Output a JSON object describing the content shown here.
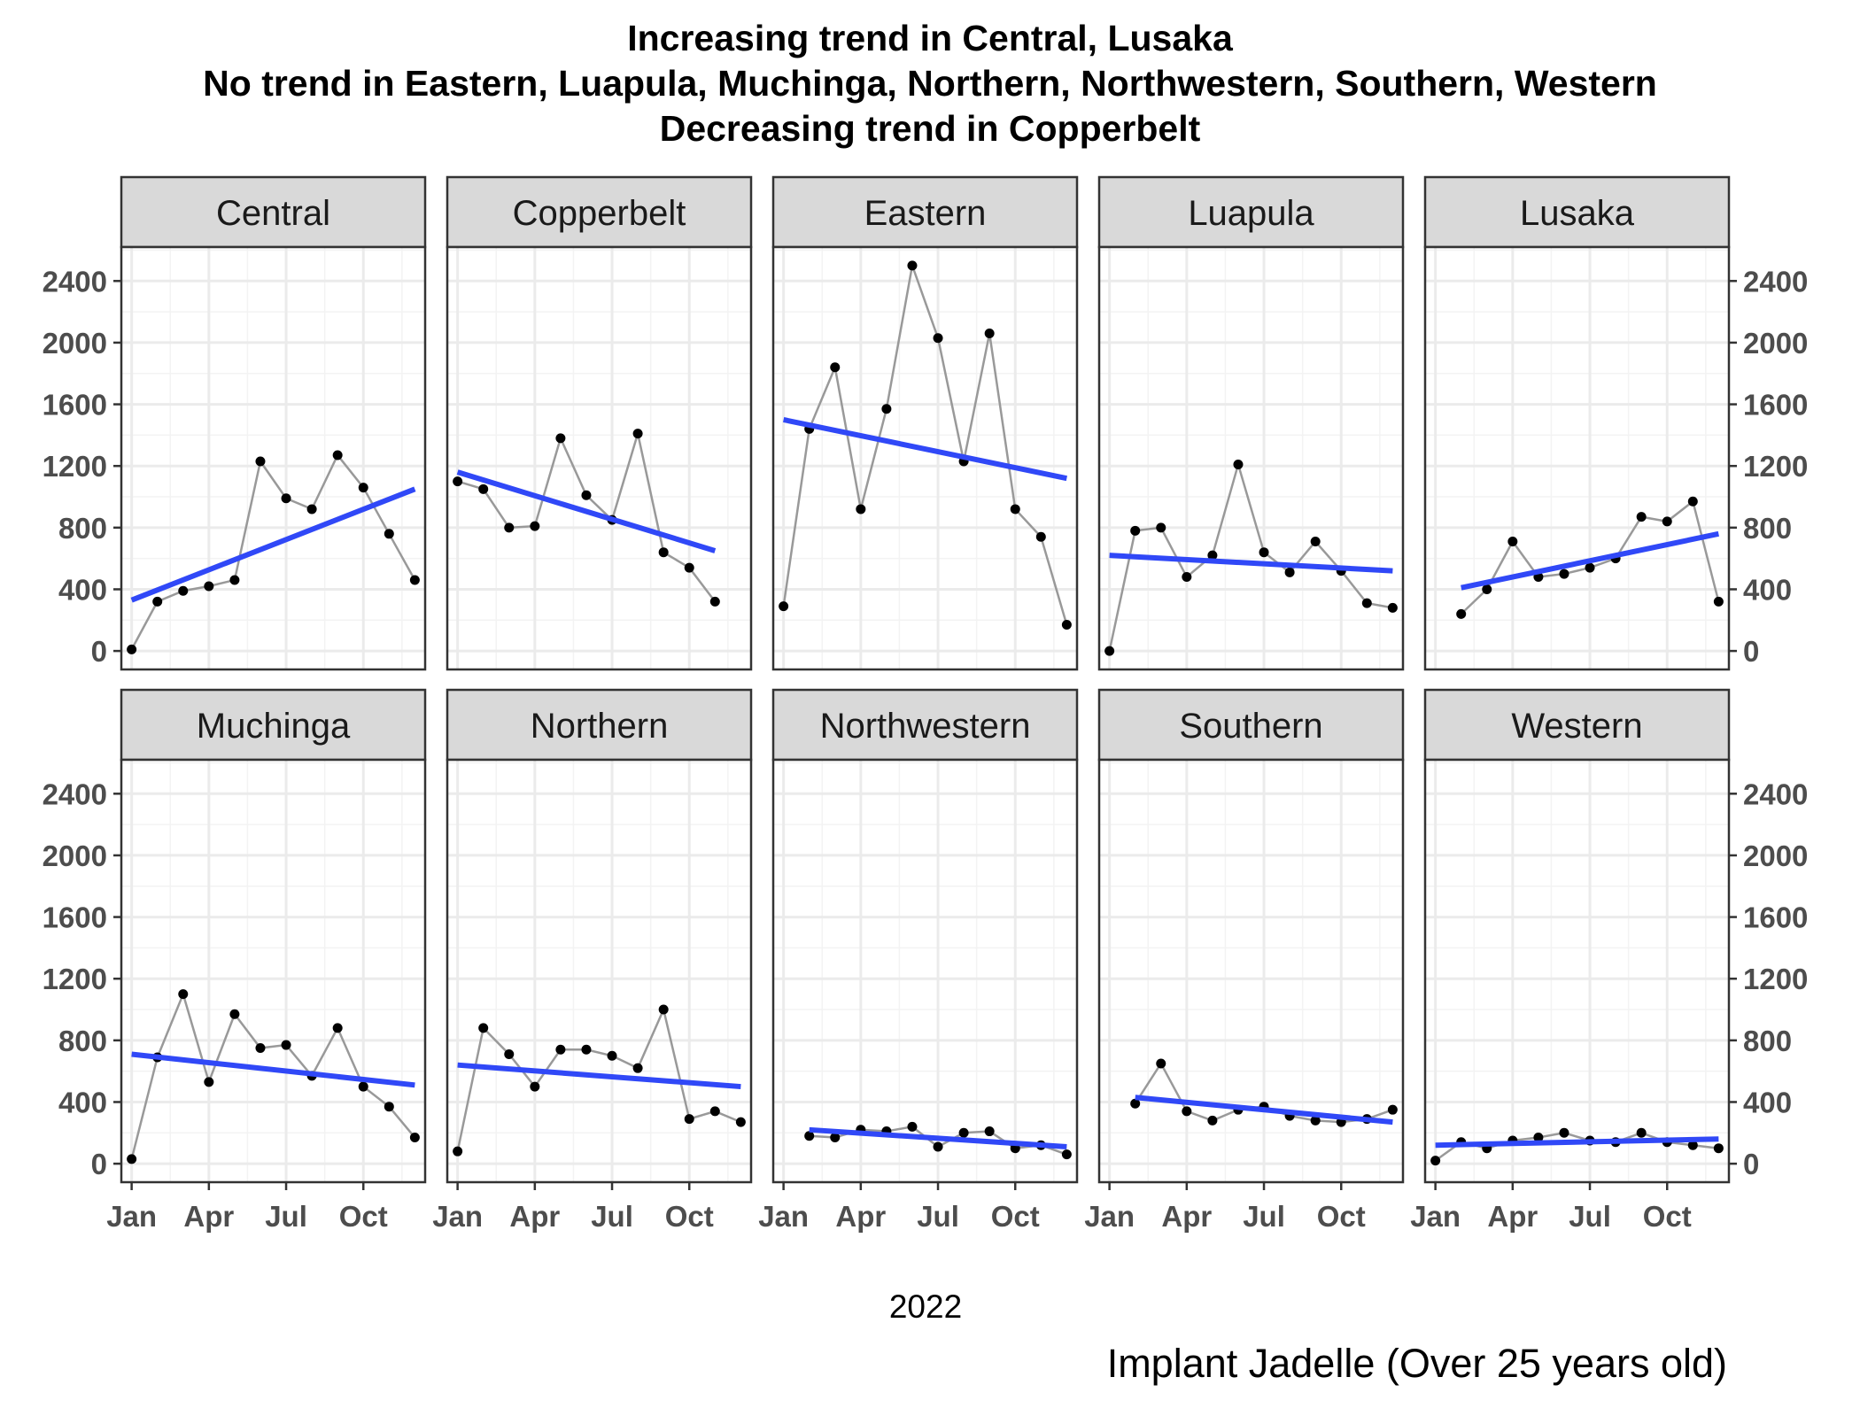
{
  "chart_data": {
    "type": "line",
    "title_lines": [
      "Increasing trend in Central, Lusaka",
      "No trend in Eastern, Luapula, Muchinga, Northern, Northwestern, Southern, Western",
      "Decreasing trend in Copperbelt"
    ],
    "xlabel": "2022",
    "caption": "Implant Jadelle (Over 25 years old)",
    "ylabel": "",
    "ylim": [
      -120,
      2620
    ],
    "yticks": [
      0,
      400,
      800,
      1200,
      1600,
      2000,
      2400
    ],
    "xlim": [
      0.6,
      12.4
    ],
    "xticks": [
      1,
      4,
      7,
      10
    ],
    "xtick_labels": [
      "Jan",
      "Apr",
      "Jul",
      "Oct"
    ],
    "grid": true,
    "legend": "none",
    "colors": {
      "series": "#999999",
      "points": "#000000",
      "trend": "#3048f7",
      "strip": "#d9d9d9",
      "grid": "#ebebeb",
      "border": "#333333"
    },
    "facets": [
      {
        "name": "Central",
        "values": [
          10,
          320,
          390,
          420,
          460,
          1230,
          990,
          920,
          1270,
          1060,
          760,
          460
        ],
        "trend": [
          330,
          1050
        ]
      },
      {
        "name": "Copperbelt",
        "values": [
          1100,
          1050,
          800,
          810,
          1380,
          1010,
          850,
          1410,
          640,
          540,
          320,
          null
        ],
        "trend": [
          1160,
          650
        ]
      },
      {
        "name": "Eastern",
        "values": [
          290,
          1440,
          1840,
          920,
          1570,
          2500,
          2030,
          1230,
          2060,
          920,
          740,
          170
        ],
        "trend": [
          1500,
          1120
        ]
      },
      {
        "name": "Luapula",
        "values": [
          0,
          780,
          800,
          480,
          620,
          1210,
          640,
          510,
          710,
          520,
          310,
          280
        ],
        "trend": [
          620,
          520
        ]
      },
      {
        "name": "Lusaka",
        "values": [
          null,
          240,
          400,
          710,
          480,
          500,
          540,
          600,
          870,
          840,
          970,
          320
        ],
        "trend": [
          410,
          760
        ]
      },
      {
        "name": "Muchinga",
        "values": [
          30,
          690,
          1100,
          530,
          970,
          750,
          770,
          570,
          880,
          500,
          370,
          170
        ],
        "trend": [
          710,
          510
        ]
      },
      {
        "name": "Northern",
        "values": [
          80,
          880,
          710,
          500,
          740,
          740,
          700,
          620,
          1000,
          290,
          340,
          270
        ],
        "trend": [
          640,
          500
        ]
      },
      {
        "name": "Northwestern",
        "values": [
          null,
          180,
          170,
          220,
          210,
          240,
          110,
          200,
          210,
          100,
          120,
          60
        ],
        "trend": [
          220,
          110
        ]
      },
      {
        "name": "Southern",
        "values": [
          null,
          390,
          650,
          340,
          280,
          350,
          370,
          310,
          280,
          270,
          290,
          350
        ],
        "trend": [
          430,
          270
        ]
      },
      {
        "name": "Western",
        "values": [
          20,
          140,
          100,
          150,
          170,
          200,
          150,
          140,
          200,
          140,
          120,
          100
        ],
        "trend": [
          120,
          160
        ]
      }
    ]
  }
}
